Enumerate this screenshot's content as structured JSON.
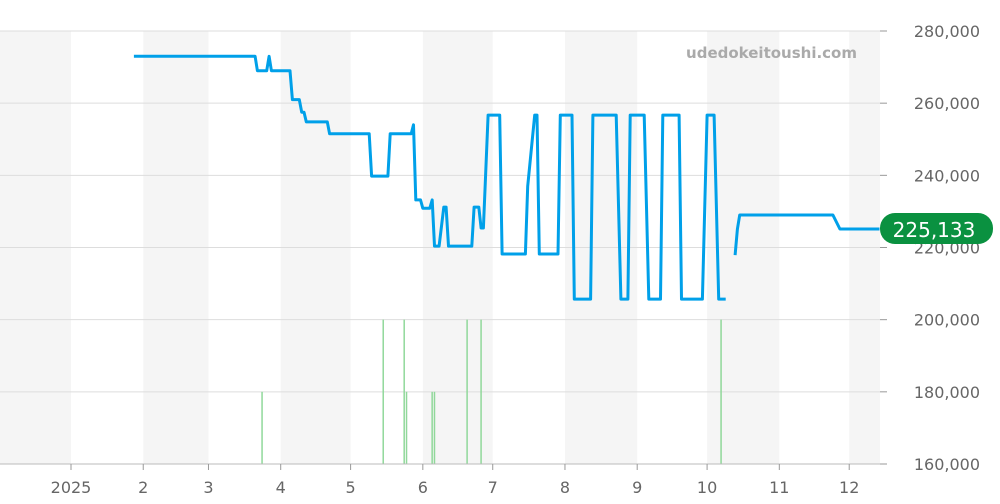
{
  "watermark": "udedokeitoushi.com",
  "current_price_label": "225,133",
  "colors": {
    "line": "#00a0e9",
    "volume": "#90d89a",
    "badge": "#0a9140",
    "band": "#f5f5f5",
    "grid": "#dddddd",
    "text": "#666666",
    "watermark": "#aaaaaa"
  },
  "chart_data": {
    "type": "line",
    "x_ticks": [
      {
        "date": "2025-01-01",
        "label": "2025"
      },
      {
        "date": "2025-02-01",
        "label": "2"
      },
      {
        "date": "2025-03-01",
        "label": "3"
      },
      {
        "date": "2025-04-01",
        "label": "4"
      },
      {
        "date": "2025-05-01",
        "label": "5"
      },
      {
        "date": "2025-06-01",
        "label": "6"
      },
      {
        "date": "2025-07-01",
        "label": "7"
      },
      {
        "date": "2025-08-01",
        "label": "8"
      },
      {
        "date": "2025-09-01",
        "label": "9"
      },
      {
        "date": "2025-10-01",
        "label": "10"
      },
      {
        "date": "2025-11-01",
        "label": "11"
      },
      {
        "date": "2025-12-01",
        "label": "12"
      }
    ],
    "xlim": [
      "2024-12-01",
      "2025-12-14"
    ],
    "ylim": [
      160000,
      280000
    ],
    "y_ticks": [
      {
        "value": 160000,
        "label": "160,000"
      },
      {
        "value": 180000,
        "label": "180,000"
      },
      {
        "value": 200000,
        "label": "200,000"
      },
      {
        "value": 220000,
        "label": "220,000"
      },
      {
        "value": 240000,
        "label": "240,000"
      },
      {
        "value": 260000,
        "label": "260,000"
      },
      {
        "value": 280000,
        "label": "280,000"
      }
    ],
    "grid": true,
    "shaded_months": [
      "2024-12",
      "2025-02",
      "2025-04",
      "2025-06",
      "2025-08",
      "2025-10",
      "2025-12"
    ],
    "price_series": [
      [
        "2025-01-28",
        273000
      ],
      [
        "2025-03-21",
        273000
      ],
      [
        "2025-03-22",
        269000
      ],
      [
        "2025-03-26",
        269000
      ],
      [
        "2025-03-27",
        273000
      ],
      [
        "2025-03-28",
        269000
      ],
      [
        "2025-04-05",
        269000
      ],
      [
        "2025-04-06",
        261000
      ],
      [
        "2025-04-09",
        261000
      ],
      [
        "2025-04-10",
        257500
      ],
      [
        "2025-04-11",
        257500
      ],
      [
        "2025-04-12",
        254800
      ],
      [
        "2025-04-21",
        254800
      ],
      [
        "2025-04-22",
        251500
      ],
      [
        "2025-05-09",
        251500
      ],
      [
        "2025-05-10",
        239800
      ],
      [
        "2025-05-17",
        239800
      ],
      [
        "2025-05-18",
        251500
      ],
      [
        "2025-05-27",
        251500
      ],
      [
        "2025-05-28",
        254000
      ],
      [
        "2025-05-29",
        233200
      ],
      [
        "2025-05-31",
        233200
      ],
      [
        "2025-06-01",
        230900
      ],
      [
        "2025-06-04",
        230900
      ],
      [
        "2025-06-05",
        233200
      ],
      [
        "2025-06-06",
        220400
      ],
      [
        "2025-06-08",
        220400
      ],
      [
        "2025-06-10",
        231200
      ],
      [
        "2025-06-11",
        231200
      ],
      [
        "2025-06-12",
        220400
      ],
      [
        "2025-06-22",
        220400
      ],
      [
        "2025-06-23",
        231200
      ],
      [
        "2025-06-25",
        231200
      ],
      [
        "2025-06-26",
        225400
      ],
      [
        "2025-06-27",
        225400
      ],
      [
        "2025-06-29",
        256700
      ],
      [
        "2025-07-04",
        256700
      ],
      [
        "2025-07-05",
        218200
      ],
      [
        "2025-07-15",
        218200
      ],
      [
        "2025-07-16",
        237000
      ],
      [
        "2025-07-19",
        256700
      ],
      [
        "2025-07-20",
        256700
      ],
      [
        "2025-07-21",
        218200
      ],
      [
        "2025-07-29",
        218200
      ],
      [
        "2025-07-30",
        256700
      ],
      [
        "2025-08-04",
        256700
      ],
      [
        "2025-08-05",
        205700
      ],
      [
        "2025-08-12",
        205700
      ],
      [
        "2025-08-13",
        256700
      ],
      [
        "2025-08-23",
        256700
      ],
      [
        "2025-08-25",
        205700
      ],
      [
        "2025-08-28",
        205700
      ],
      [
        "2025-08-29",
        256700
      ],
      [
        "2025-09-04",
        256700
      ],
      [
        "2025-09-06",
        205700
      ],
      [
        "2025-09-11",
        205700
      ],
      [
        "2025-09-12",
        256700
      ],
      [
        "2025-09-19",
        256700
      ],
      [
        "2025-09-20",
        205700
      ],
      [
        "2025-09-29",
        205700
      ],
      [
        "2025-10-01",
        256700
      ],
      [
        "2025-10-04",
        256700
      ],
      [
        "2025-10-06",
        205700
      ],
      [
        "2025-10-09",
        205700
      ],
      null,
      [
        "2025-10-13",
        217900
      ],
      [
        "2025-10-14",
        225100
      ],
      [
        "2025-10-15",
        229000
      ],
      [
        "2025-11-24",
        229000
      ],
      [
        "2025-11-27",
        225133
      ],
      [
        "2025-12-14",
        225133
      ]
    ],
    "volume_series": [
      [
        "2025-03-24",
        1
      ],
      [
        "2025-05-15",
        2
      ],
      [
        "2025-05-24",
        2
      ],
      [
        "2025-05-25",
        1
      ],
      [
        "2025-06-05",
        1
      ],
      [
        "2025-06-06",
        1
      ],
      [
        "2025-06-20",
        2
      ],
      [
        "2025-06-26",
        2
      ],
      [
        "2025-10-07",
        2
      ]
    ],
    "last_value": 225133
  }
}
